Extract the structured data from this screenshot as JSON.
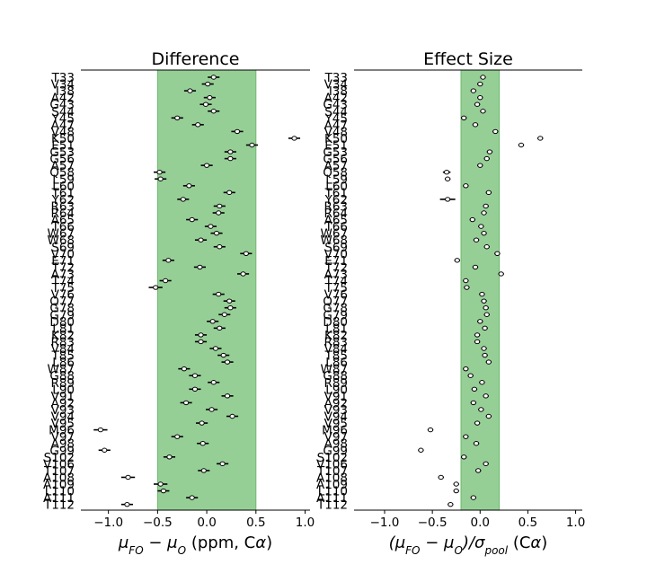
{
  "chart_data": [
    {
      "type": "scatter",
      "title": "Difference",
      "xlabel_parts": [
        "μ",
        "FO",
        " − μ",
        "O",
        " (ppm, C",
        "α",
        ")"
      ],
      "xticks": [
        -1.0,
        -0.5,
        0.0,
        0.5,
        1.0
      ],
      "xtick_labels": [
        "−1.0",
        "−0.5",
        "0.0",
        "0.5",
        "1.0"
      ],
      "xlim": [
        -1.28,
        1.05
      ],
      "band": [
        -0.5,
        0.5
      ],
      "band_color": "#96cf96",
      "band_edge_color": "#6db86d",
      "categories": [
        "T33",
        "V34",
        "I38",
        "A42",
        "G43",
        "S44",
        "Y45",
        "A47",
        "V48",
        "K50",
        "E51",
        "G53",
        "G56",
        "A57",
        "Q58",
        "L59",
        "L60",
        "T61",
        "Y62",
        "R63",
        "R64",
        "A65",
        "T66",
        "W67",
        "W68",
        "S69",
        "V70",
        "E71",
        "T72",
        "A73",
        "T74",
        "T75",
        "V76",
        "Q77",
        "G78",
        "G79",
        "D80",
        "L81",
        "K82",
        "R83",
        "V84",
        "T85",
        "L86",
        "W87",
        "G88",
        "R89",
        "L90",
        "V91",
        "A92",
        "V93",
        "V94",
        "V95",
        "M96",
        "V97",
        "A98",
        "G99",
        "S102",
        "V106",
        "T107",
        "A108",
        "A109",
        "L110",
        "A111",
        "T112"
      ],
      "values": [
        0.07,
        0.01,
        -0.17,
        0.03,
        -0.01,
        0.07,
        -0.3,
        -0.09,
        0.31,
        0.89,
        0.46,
        0.24,
        0.24,
        0.0,
        -0.48,
        -0.47,
        -0.18,
        0.23,
        -0.24,
        0.13,
        0.12,
        -0.15,
        0.04,
        0.1,
        -0.06,
        0.13,
        0.4,
        -0.39,
        -0.07,
        0.37,
        -0.42,
        -0.52,
        0.12,
        0.23,
        0.24,
        0.18,
        0.06,
        0.13,
        -0.06,
        -0.06,
        0.09,
        0.17,
        0.21,
        -0.23,
        -0.12,
        0.07,
        -0.12,
        0.21,
        -0.21,
        0.05,
        0.26,
        -0.05,
        -1.08,
        -0.3,
        -0.04,
        -1.04,
        -0.38,
        0.16,
        -0.03,
        -0.8,
        -0.47,
        -0.44,
        -0.15,
        -0.81
      ],
      "errors": [
        0.06,
        0.06,
        0.06,
        0.06,
        0.06,
        0.06,
        0.06,
        0.06,
        0.06,
        0.06,
        0.06,
        0.06,
        0.06,
        0.06,
        0.06,
        0.06,
        0.06,
        0.06,
        0.06,
        0.06,
        0.06,
        0.06,
        0.06,
        0.06,
        0.06,
        0.06,
        0.06,
        0.06,
        0.06,
        0.06,
        0.06,
        0.07,
        0.06,
        0.06,
        0.06,
        0.06,
        0.06,
        0.06,
        0.06,
        0.06,
        0.06,
        0.06,
        0.06,
        0.06,
        0.06,
        0.06,
        0.06,
        0.06,
        0.06,
        0.06,
        0.06,
        0.06,
        0.07,
        0.06,
        0.06,
        0.06,
        0.06,
        0.06,
        0.06,
        0.07,
        0.07,
        0.06,
        0.06,
        0.06
      ],
      "grid": false
    },
    {
      "type": "scatter",
      "title": "Effect Size",
      "xlabel_parts": [
        "(μ",
        "FO",
        " − μ",
        "O",
        ")/σ",
        "pool",
        "  (C",
        "α",
        ")"
      ],
      "xticks": [
        -1.0,
        -0.5,
        0.0,
        0.5,
        1.0
      ],
      "xtick_labels": [
        "−1.0",
        "−0.5",
        "0.0",
        "0.5",
        "1.0"
      ],
      "xlim": [
        -1.32,
        1.07
      ],
      "band": [
        -0.2,
        0.2
      ],
      "band_color": "#96cf96",
      "band_edge_color": "#6db86d",
      "categories": [
        "T33",
        "V34",
        "I38",
        "A42",
        "G43",
        "S44",
        "Y45",
        "A47",
        "V48",
        "K50",
        "E51",
        "G53",
        "G56",
        "A57",
        "Q58",
        "L59",
        "L60",
        "T61",
        "Y62",
        "R63",
        "R64",
        "A65",
        "T66",
        "W67",
        "W68",
        "S69",
        "V70",
        "E71",
        "T72",
        "A73",
        "T74",
        "T75",
        "V76",
        "Q77",
        "G78",
        "G79",
        "D80",
        "L81",
        "K82",
        "R83",
        "V84",
        "T85",
        "L86",
        "W87",
        "G88",
        "R89",
        "L90",
        "V91",
        "A92",
        "V93",
        "V94",
        "V95",
        "M96",
        "V97",
        "A98",
        "G99",
        "S102",
        "V106",
        "T107",
        "A108",
        "A109",
        "L110",
        "A111",
        "T112"
      ],
      "values": [
        0.03,
        0.0,
        -0.07,
        0.0,
        -0.03,
        0.03,
        -0.17,
        -0.05,
        0.16,
        0.63,
        0.43,
        0.1,
        0.07,
        0.0,
        -0.35,
        -0.34,
        -0.15,
        0.09,
        -0.34,
        0.06,
        0.04,
        -0.08,
        0.01,
        0.04,
        -0.04,
        0.07,
        0.18,
        -0.24,
        -0.05,
        0.22,
        -0.15,
        -0.14,
        0.02,
        0.04,
        0.06,
        0.07,
        0.0,
        0.05,
        -0.03,
        -0.03,
        0.04,
        0.05,
        0.09,
        -0.15,
        -0.1,
        0.02,
        -0.06,
        0.06,
        -0.07,
        0.01,
        0.09,
        -0.03,
        -0.52,
        -0.15,
        -0.04,
        -0.62,
        -0.17,
        0.06,
        -0.02,
        -0.41,
        -0.25,
        -0.25,
        -0.07,
        -0.31
      ],
      "errors": [
        0.03,
        0.03,
        0.03,
        0.03,
        0.03,
        0.03,
        0.03,
        0.03,
        0.03,
        0.03,
        0.03,
        0.03,
        0.03,
        0.03,
        0.04,
        0.03,
        0.03,
        0.03,
        0.08,
        0.03,
        0.03,
        0.03,
        0.03,
        0.03,
        0.03,
        0.03,
        0.03,
        0.03,
        0.03,
        0.03,
        0.03,
        0.03,
        0.03,
        0.03,
        0.03,
        0.03,
        0.03,
        0.03,
        0.03,
        0.03,
        0.03,
        0.03,
        0.03,
        0.03,
        0.03,
        0.03,
        0.03,
        0.03,
        0.03,
        0.03,
        0.03,
        0.03,
        0.03,
        0.03,
        0.03,
        0.03,
        0.03,
        0.03,
        0.03,
        0.03,
        0.03,
        0.03,
        0.03,
        0.03
      ],
      "grid": false
    }
  ]
}
